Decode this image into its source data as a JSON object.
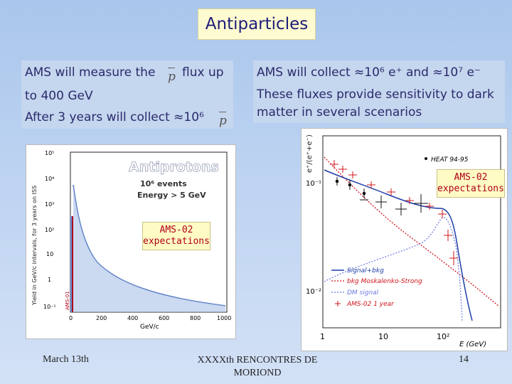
{
  "slide": {
    "title": "Antiparticles",
    "left_box": {
      "line1_prefix": "AMS will measure the",
      "line1_suffix": "flux up",
      "line2": "to 400 GeV",
      "line3": "After 3 years will collect ≈10⁶",
      "pbar_symbol": "p"
    },
    "right_box": {
      "line1": "AMS will collect ≈10⁶ e⁺  and ≈10⁷ e⁻",
      "line2": "These fluxes provide sensitivity to dark",
      "line3": "matter in several scenarios"
    },
    "left_plot": {
      "heading": "Antiprotons",
      "subline1": "10⁶ events",
      "subline2": "Energy > 5 GeV",
      "ylabel": "Yield in GeV/c intervals, for 3 years on ISS",
      "xlabel": "GeV/c",
      "bar_label": "AMS-01",
      "y_ticks": [
        "10⁵",
        "10⁴",
        "10³",
        "10²",
        "10",
        "1",
        "10⁻¹"
      ],
      "x_ticks": [
        "0",
        "200",
        "400",
        "600",
        "800",
        "1000"
      ],
      "expectation_label": [
        "AMS-02",
        "expectations"
      ]
    },
    "right_plot": {
      "ylabel": "e⁺/(e⁺+e⁻)",
      "xlabel": "E (GeV)",
      "x_ticks": [
        "1",
        "10",
        "10²"
      ],
      "y_ticks": [
        "10⁻¹",
        "10⁻²"
      ],
      "legend_heat": "HEAT 94-95",
      "legend": [
        "Signal+bkg",
        "bkg Moskalenko-Strong",
        "DM signal",
        "AMS-02 1 year"
      ],
      "expectation_label": [
        "AMS-02",
        "expectations"
      ]
    },
    "footer": {
      "left": "March 13th",
      "center_line1": "XXXXth RENCONTRES DE",
      "center_line2": "MORIOND",
      "page": "14"
    },
    "colors": {
      "title_bg": "#fffbd0",
      "text_box_bg": "#c5d6ef",
      "text_color": "#2a2a6a",
      "label_red": "#b0001a",
      "signal_blue": "#1f3ea8",
      "bkg_red": "#d0141c",
      "dm_blue": "#6b78e0"
    }
  }
}
